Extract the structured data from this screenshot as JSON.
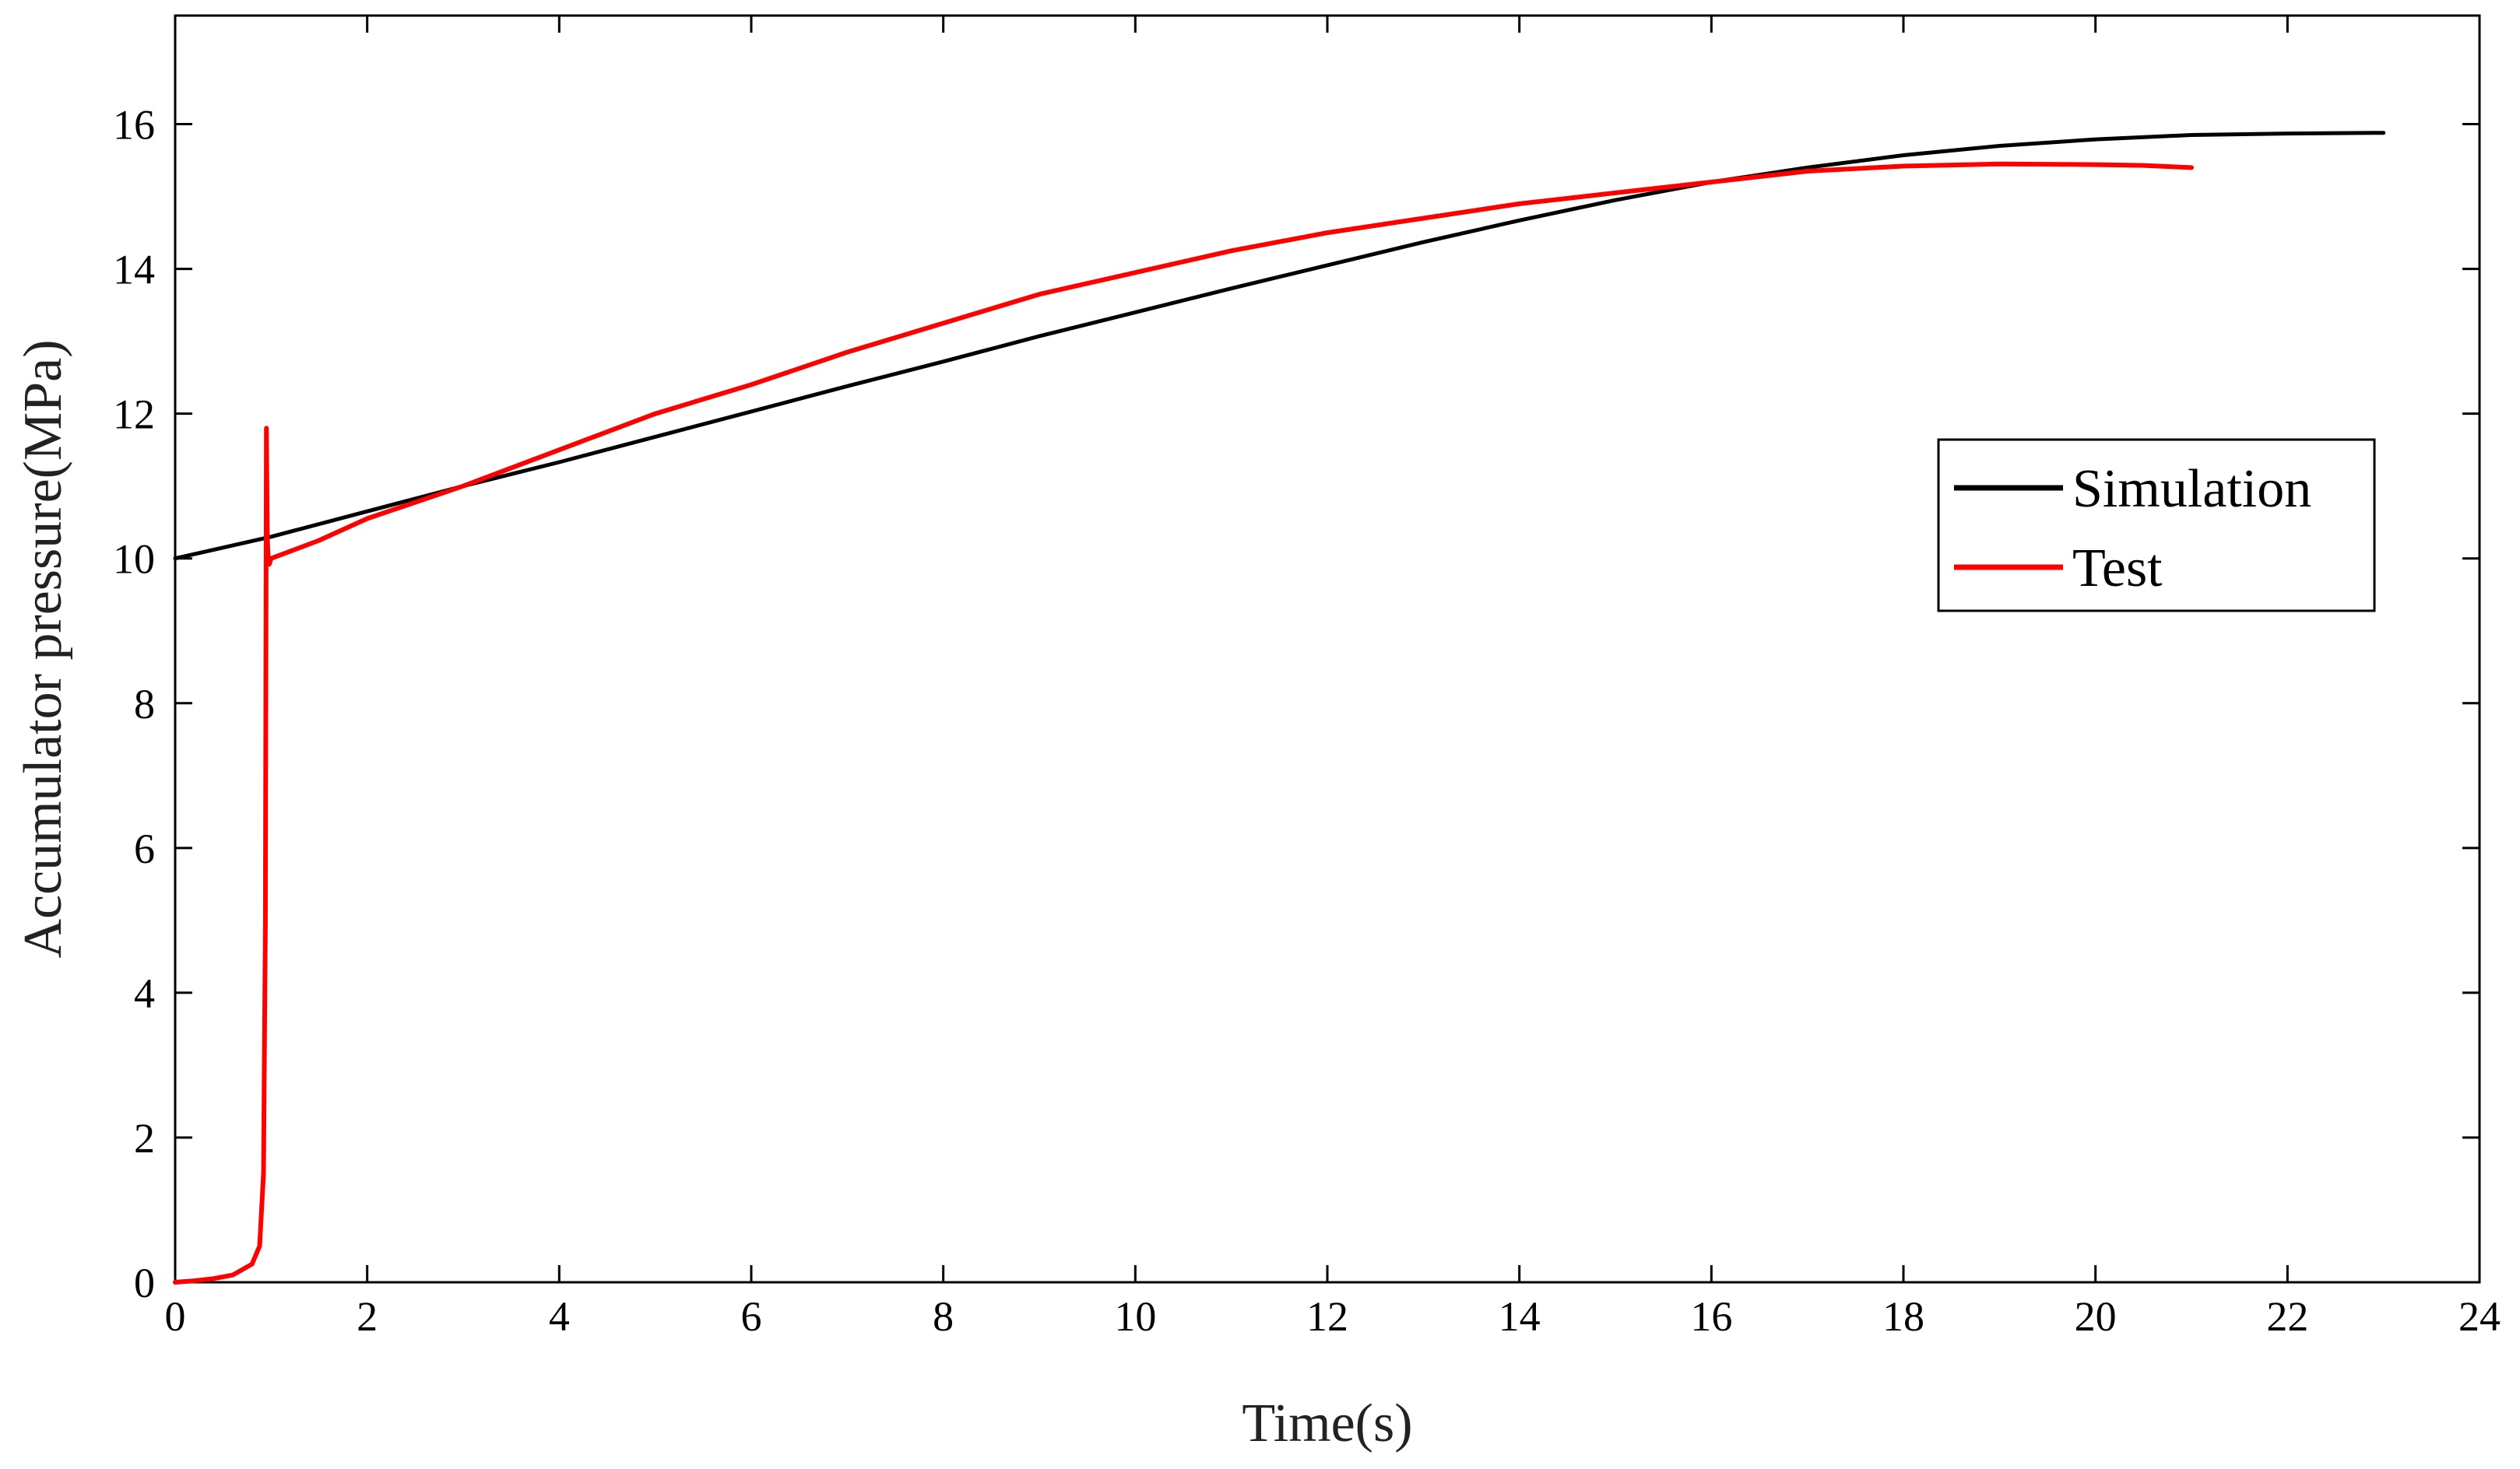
{
  "chart_data": {
    "type": "line",
    "xlabel": "Time(s)",
    "ylabel": "Accumulator pressure(MPa)",
    "xlim": [
      0,
      24
    ],
    "ylim": [
      0,
      17.5
    ],
    "xticks": [
      0,
      2,
      4,
      6,
      8,
      10,
      12,
      14,
      16,
      18,
      20,
      22,
      24
    ],
    "yticks": [
      0,
      2,
      4,
      6,
      8,
      10,
      12,
      14,
      16
    ],
    "grid": false,
    "legend_position": "right",
    "series": [
      {
        "name": "Simulation",
        "color": "#000000",
        "x": [
          0,
          1,
          2,
          3,
          4,
          5,
          6,
          7,
          8,
          9,
          10,
          11,
          12,
          13,
          14,
          15,
          16,
          17,
          18,
          19,
          20,
          21,
          22,
          23
        ],
        "y": [
          10.0,
          10.3,
          10.65,
          11.0,
          11.33,
          11.68,
          12.03,
          12.38,
          12.72,
          13.07,
          13.4,
          13.73,
          14.05,
          14.37,
          14.67,
          14.95,
          15.2,
          15.4,
          15.57,
          15.7,
          15.79,
          15.85,
          15.87,
          15.88
        ]
      },
      {
        "name": "Test",
        "color": "#ff0000",
        "x": [
          0,
          0.2,
          0.4,
          0.6,
          0.8,
          0.88,
          0.92,
          0.94,
          0.95,
          0.96,
          0.97,
          0.98,
          1.0,
          1.5,
          2,
          3,
          4,
          5,
          6,
          7,
          8,
          9,
          10,
          11,
          12,
          13,
          14,
          15,
          16,
          17,
          18,
          19,
          20,
          20.5,
          21
        ],
        "y": [
          0.0,
          0.02,
          0.05,
          0.1,
          0.25,
          0.5,
          1.5,
          5.0,
          11.8,
          10.3,
          9.95,
          9.92,
          10.0,
          10.25,
          10.55,
          11.0,
          11.5,
          12.0,
          12.4,
          12.85,
          13.25,
          13.65,
          13.95,
          14.25,
          14.5,
          14.7,
          14.9,
          15.05,
          15.2,
          15.35,
          15.42,
          15.45,
          15.44,
          15.43,
          15.4
        ]
      }
    ]
  }
}
